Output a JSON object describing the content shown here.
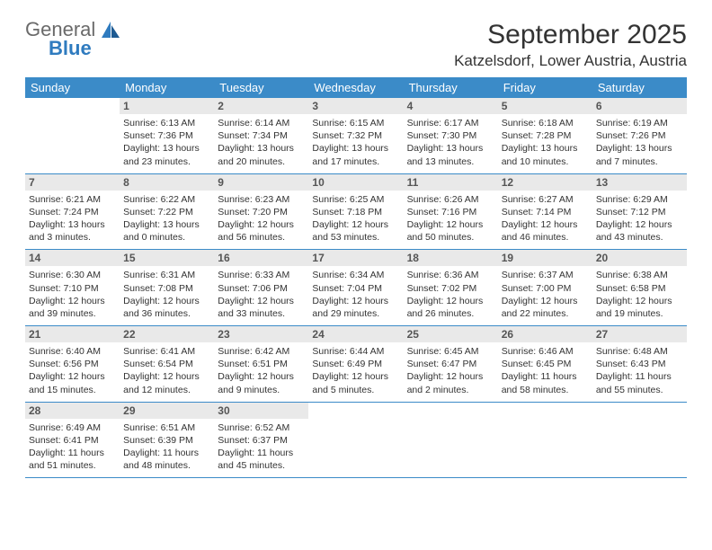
{
  "logo": {
    "general": "General",
    "blue": "Blue"
  },
  "title": "September 2025",
  "location": "Katzelsdorf, Lower Austria, Austria",
  "colors": {
    "header_bg": "#3b8bc8",
    "header_text": "#ffffff",
    "daynum_bg": "#e9e9e9",
    "daynum_text": "#555555",
    "body_text": "#333333",
    "divider": "#3b8bc8",
    "logo_gray": "#6a6a6a",
    "logo_blue": "#2f7bbf"
  },
  "weekdays": [
    "Sunday",
    "Monday",
    "Tuesday",
    "Wednesday",
    "Thursday",
    "Friday",
    "Saturday"
  ],
  "weeks": [
    [
      {
        "day": "",
        "sunrise": "",
        "sunset": "",
        "daylight": ""
      },
      {
        "day": "1",
        "sunrise": "Sunrise: 6:13 AM",
        "sunset": "Sunset: 7:36 PM",
        "daylight": "Daylight: 13 hours and 23 minutes."
      },
      {
        "day": "2",
        "sunrise": "Sunrise: 6:14 AM",
        "sunset": "Sunset: 7:34 PM",
        "daylight": "Daylight: 13 hours and 20 minutes."
      },
      {
        "day": "3",
        "sunrise": "Sunrise: 6:15 AM",
        "sunset": "Sunset: 7:32 PM",
        "daylight": "Daylight: 13 hours and 17 minutes."
      },
      {
        "day": "4",
        "sunrise": "Sunrise: 6:17 AM",
        "sunset": "Sunset: 7:30 PM",
        "daylight": "Daylight: 13 hours and 13 minutes."
      },
      {
        "day": "5",
        "sunrise": "Sunrise: 6:18 AM",
        "sunset": "Sunset: 7:28 PM",
        "daylight": "Daylight: 13 hours and 10 minutes."
      },
      {
        "day": "6",
        "sunrise": "Sunrise: 6:19 AM",
        "sunset": "Sunset: 7:26 PM",
        "daylight": "Daylight: 13 hours and 7 minutes."
      }
    ],
    [
      {
        "day": "7",
        "sunrise": "Sunrise: 6:21 AM",
        "sunset": "Sunset: 7:24 PM",
        "daylight": "Daylight: 13 hours and 3 minutes."
      },
      {
        "day": "8",
        "sunrise": "Sunrise: 6:22 AM",
        "sunset": "Sunset: 7:22 PM",
        "daylight": "Daylight: 13 hours and 0 minutes."
      },
      {
        "day": "9",
        "sunrise": "Sunrise: 6:23 AM",
        "sunset": "Sunset: 7:20 PM",
        "daylight": "Daylight: 12 hours and 56 minutes."
      },
      {
        "day": "10",
        "sunrise": "Sunrise: 6:25 AM",
        "sunset": "Sunset: 7:18 PM",
        "daylight": "Daylight: 12 hours and 53 minutes."
      },
      {
        "day": "11",
        "sunrise": "Sunrise: 6:26 AM",
        "sunset": "Sunset: 7:16 PM",
        "daylight": "Daylight: 12 hours and 50 minutes."
      },
      {
        "day": "12",
        "sunrise": "Sunrise: 6:27 AM",
        "sunset": "Sunset: 7:14 PM",
        "daylight": "Daylight: 12 hours and 46 minutes."
      },
      {
        "day": "13",
        "sunrise": "Sunrise: 6:29 AM",
        "sunset": "Sunset: 7:12 PM",
        "daylight": "Daylight: 12 hours and 43 minutes."
      }
    ],
    [
      {
        "day": "14",
        "sunrise": "Sunrise: 6:30 AM",
        "sunset": "Sunset: 7:10 PM",
        "daylight": "Daylight: 12 hours and 39 minutes."
      },
      {
        "day": "15",
        "sunrise": "Sunrise: 6:31 AM",
        "sunset": "Sunset: 7:08 PM",
        "daylight": "Daylight: 12 hours and 36 minutes."
      },
      {
        "day": "16",
        "sunrise": "Sunrise: 6:33 AM",
        "sunset": "Sunset: 7:06 PM",
        "daylight": "Daylight: 12 hours and 33 minutes."
      },
      {
        "day": "17",
        "sunrise": "Sunrise: 6:34 AM",
        "sunset": "Sunset: 7:04 PM",
        "daylight": "Daylight: 12 hours and 29 minutes."
      },
      {
        "day": "18",
        "sunrise": "Sunrise: 6:36 AM",
        "sunset": "Sunset: 7:02 PM",
        "daylight": "Daylight: 12 hours and 26 minutes."
      },
      {
        "day": "19",
        "sunrise": "Sunrise: 6:37 AM",
        "sunset": "Sunset: 7:00 PM",
        "daylight": "Daylight: 12 hours and 22 minutes."
      },
      {
        "day": "20",
        "sunrise": "Sunrise: 6:38 AM",
        "sunset": "Sunset: 6:58 PM",
        "daylight": "Daylight: 12 hours and 19 minutes."
      }
    ],
    [
      {
        "day": "21",
        "sunrise": "Sunrise: 6:40 AM",
        "sunset": "Sunset: 6:56 PM",
        "daylight": "Daylight: 12 hours and 15 minutes."
      },
      {
        "day": "22",
        "sunrise": "Sunrise: 6:41 AM",
        "sunset": "Sunset: 6:54 PM",
        "daylight": "Daylight: 12 hours and 12 minutes."
      },
      {
        "day": "23",
        "sunrise": "Sunrise: 6:42 AM",
        "sunset": "Sunset: 6:51 PM",
        "daylight": "Daylight: 12 hours and 9 minutes."
      },
      {
        "day": "24",
        "sunrise": "Sunrise: 6:44 AM",
        "sunset": "Sunset: 6:49 PM",
        "daylight": "Daylight: 12 hours and 5 minutes."
      },
      {
        "day": "25",
        "sunrise": "Sunrise: 6:45 AM",
        "sunset": "Sunset: 6:47 PM",
        "daylight": "Daylight: 12 hours and 2 minutes."
      },
      {
        "day": "26",
        "sunrise": "Sunrise: 6:46 AM",
        "sunset": "Sunset: 6:45 PM",
        "daylight": "Daylight: 11 hours and 58 minutes."
      },
      {
        "day": "27",
        "sunrise": "Sunrise: 6:48 AM",
        "sunset": "Sunset: 6:43 PM",
        "daylight": "Daylight: 11 hours and 55 minutes."
      }
    ],
    [
      {
        "day": "28",
        "sunrise": "Sunrise: 6:49 AM",
        "sunset": "Sunset: 6:41 PM",
        "daylight": "Daylight: 11 hours and 51 minutes."
      },
      {
        "day": "29",
        "sunrise": "Sunrise: 6:51 AM",
        "sunset": "Sunset: 6:39 PM",
        "daylight": "Daylight: 11 hours and 48 minutes."
      },
      {
        "day": "30",
        "sunrise": "Sunrise: 6:52 AM",
        "sunset": "Sunset: 6:37 PM",
        "daylight": "Daylight: 11 hours and 45 minutes."
      },
      {
        "day": "",
        "sunrise": "",
        "sunset": "",
        "daylight": ""
      },
      {
        "day": "",
        "sunrise": "",
        "sunset": "",
        "daylight": ""
      },
      {
        "day": "",
        "sunrise": "",
        "sunset": "",
        "daylight": ""
      },
      {
        "day": "",
        "sunrise": "",
        "sunset": "",
        "daylight": ""
      }
    ]
  ]
}
